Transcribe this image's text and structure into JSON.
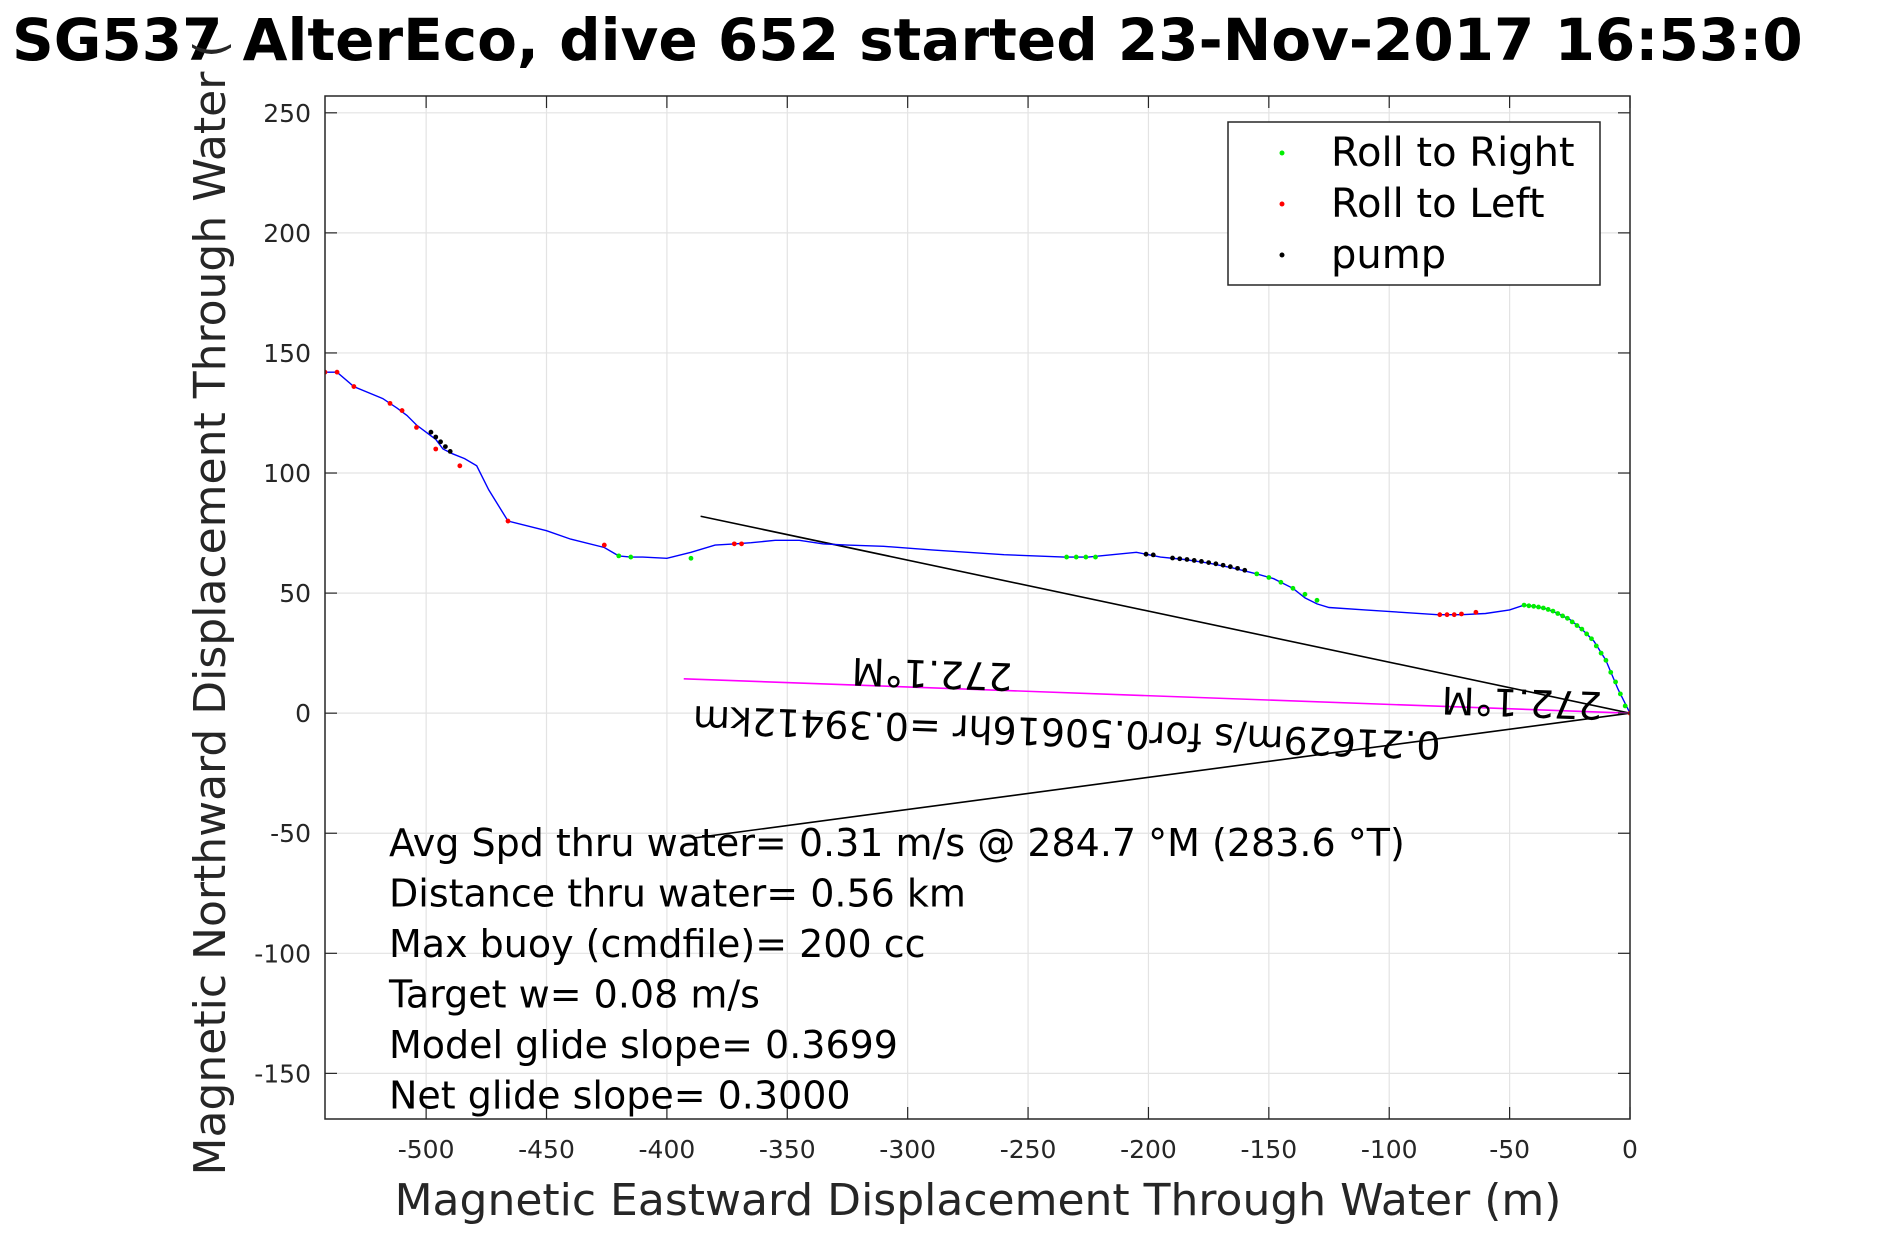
{
  "chart_data": {
    "type": "line",
    "title": "SG537 AlterEco, dive 652 started 23-Nov-2017 16:53:0",
    "xlabel": "Magnetic Eastward Displacement Through Water (m)",
    "ylabel": "Magnetic Northward Displacement Through Water (",
    "xlim": [
      -542,
      0
    ],
    "ylim": [
      -169,
      257
    ],
    "xticks": [
      "-500",
      "-450",
      "-400",
      "-350",
      "-300",
      "-250",
      "-200",
      "-150",
      "-100",
      "-50",
      "0"
    ],
    "yticks": [
      "-150",
      "-100",
      "-50",
      "0",
      "50",
      "100",
      "150",
      "200",
      "250"
    ],
    "grid": true,
    "legend": {
      "placement": "top-right",
      "entries": [
        {
          "name": "Roll to Right",
          "color": "#00ee00"
        },
        {
          "name": "Roll to Left",
          "color": "#ff0000"
        },
        {
          "name": "pump",
          "color": "#000000"
        }
      ]
    },
    "track": {
      "color": "#0000ff",
      "x": [
        0,
        -5,
        -10,
        -15,
        -20,
        -25,
        -30,
        -35,
        -40,
        -44,
        -50,
        -60,
        -70,
        -80,
        -95,
        -110,
        -125,
        -130,
        -135,
        -140,
        -148,
        -155,
        -165,
        -175,
        -185,
        -195,
        -205,
        -215,
        -225,
        -235,
        -260,
        -290,
        -310,
        -325,
        -335,
        -345,
        -355,
        -365,
        -372,
        -380,
        -390,
        -400,
        -410,
        -415,
        -420,
        -426,
        -440,
        -450,
        -466,
        -474,
        -479,
        -484,
        -489,
        -493,
        -496,
        -500,
        -504,
        -508,
        -512,
        -518,
        -530,
        -537,
        -542
      ],
      "y": [
        0,
        10,
        22,
        30,
        35,
        39,
        41.5,
        43.5,
        44.5,
        45,
        43,
        41.5,
        41,
        41,
        42,
        43,
        44,
        45.5,
        48,
        52,
        56,
        58,
        60.5,
        62.5,
        64,
        65,
        67,
        66,
        65,
        65,
        66,
        68,
        69.5,
        70,
        70.5,
        72,
        72,
        71,
        70.5,
        70,
        67,
        64.5,
        65,
        65,
        65.5,
        69,
        72.5,
        76,
        80,
        93,
        103,
        106,
        108,
        110,
        114,
        117,
        120,
        124,
        127,
        131,
        136,
        142,
        142
      ]
    },
    "roll_right": {
      "x": [
        -2,
        -4,
        -6,
        -8,
        -10,
        -12,
        -14,
        -16,
        -18,
        -20,
        -22,
        -24,
        -26,
        -28,
        -30,
        -32,
        -34,
        -36,
        -38,
        -40,
        -42,
        -44,
        -130,
        -135,
        -140,
        -145,
        -150,
        -155,
        -222,
        -226,
        -230,
        -234,
        -390,
        -415,
        -420
      ],
      "y": [
        3,
        8,
        13,
        17,
        22,
        25,
        28,
        31,
        33,
        35,
        36.5,
        38,
        39.5,
        40.5,
        41.5,
        42.5,
        43.2,
        43.8,
        44.2,
        44.5,
        44.7,
        45,
        47,
        49.5,
        52,
        54.5,
        56.5,
        58,
        65,
        65,
        65,
        65,
        64.5,
        65,
        65.5
      ]
    },
    "roll_left": {
      "x": [
        0,
        -64,
        -70,
        -73,
        -76,
        -79,
        -369,
        -372,
        -426,
        -466,
        -486,
        -496,
        -504,
        -510,
        -515,
        -530,
        -537,
        -542
      ],
      "y": [
        0,
        42,
        41.3,
        41,
        41,
        41,
        70.5,
        70.5,
        70,
        80,
        103,
        110,
        119,
        126,
        129,
        136,
        142,
        142
      ]
    },
    "pump": {
      "x": [
        -160,
        -163,
        -166,
        -169,
        -172,
        -175,
        -178,
        -181,
        -184,
        -187,
        -190,
        -198,
        -201,
        -490,
        -492,
        -494,
        -496,
        -498
      ],
      "y": [
        59.5,
        60.3,
        61,
        61.6,
        62.2,
        62.7,
        63.2,
        63.6,
        64,
        64.3,
        64.6,
        65.9,
        66.2,
        109,
        111,
        113,
        115,
        117
      ],
      "color": "#000000"
    },
    "lines": [
      {
        "color": "#000000",
        "x": [
          0,
          -386
        ],
        "y": [
          0,
          82
        ]
      },
      {
        "color": "#000000",
        "x": [
          0,
          -389
        ],
        "y": [
          0,
          -52
        ]
      },
      {
        "color": "#ff00ff",
        "x": [
          0,
          -393
        ],
        "y": [
          0,
          14.3
        ]
      }
    ],
    "annotations": [
      "Avg Spd thru water=  0.31 m/s @ 284.7 °M (283.6 °T)",
      "Distance thru water=  0.56 km",
      "Max buoy (cmdfile)= 200 cc",
      "Target w= 0.08 m/s",
      "Model glide slope= 0.3699",
      "Net glide slope= 0.3000"
    ],
    "rotated_annotations": [
      {
        "text": "0.21629m/s for0.50616hr =0.39412km",
        "x": -389,
        "y": 3
      },
      {
        "text": "272.1°M",
        "x": -323,
        "y": 23
      },
      {
        "text": "272.1°M",
        "x": -78,
        "y": 11
      }
    ]
  }
}
